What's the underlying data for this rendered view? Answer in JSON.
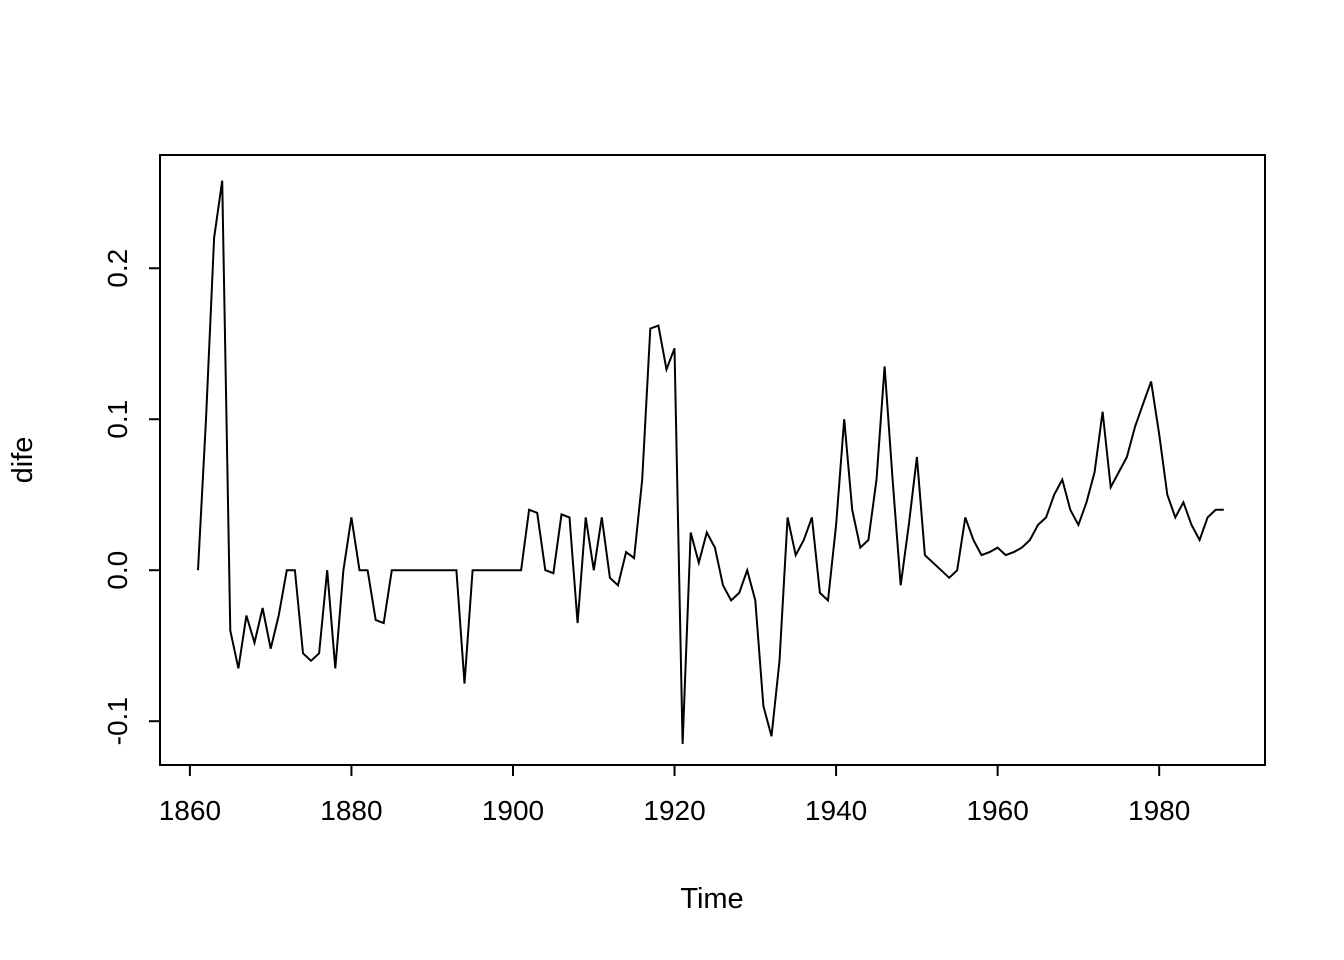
{
  "chart_data": {
    "type": "line",
    "title": "",
    "xlabel": "Time",
    "ylabel": "dife",
    "legend": "none",
    "grid": false,
    "background_color": "#ffffff",
    "line_color": "#000000",
    "xlim": [
      1856.3,
      1993.1
    ],
    "ylim": [
      -0.129,
      0.275
    ],
    "x_ticks": [
      1860,
      1880,
      1900,
      1920,
      1940,
      1960,
      1980
    ],
    "x_tick_labels": [
      "1860",
      "1880",
      "1900",
      "1920",
      "1940",
      "1960",
      "1980"
    ],
    "y_ticks": [
      -0.1,
      0.0,
      0.1,
      0.2
    ],
    "y_tick_labels": [
      "-0.1",
      "0.0",
      "0.1",
      "0.2"
    ],
    "x_start": 1861,
    "x_end": 1988,
    "x_step": 1,
    "series": [
      {
        "name": "dife",
        "values": [
          0.0,
          0.1,
          0.22,
          0.258,
          -0.04,
          -0.065,
          -0.03,
          -0.048,
          -0.025,
          -0.052,
          -0.03,
          0.0,
          0.0,
          -0.055,
          -0.06,
          -0.055,
          0.0,
          -0.065,
          0.0,
          0.035,
          0.0,
          0.0,
          -0.033,
          -0.035,
          0.0,
          0.0,
          0.0,
          0.0,
          0.0,
          0.0,
          0.0,
          0.0,
          0.0,
          -0.075,
          0.0,
          0.0,
          0.0,
          0.0,
          0.0,
          0.0,
          0.0,
          0.04,
          0.038,
          0.0,
          -0.002,
          0.037,
          0.035,
          -0.035,
          0.035,
          0.0,
          0.035,
          -0.005,
          -0.01,
          0.012,
          0.008,
          0.06,
          0.16,
          0.162,
          0.133,
          0.147,
          -0.115,
          0.025,
          0.005,
          0.025,
          0.015,
          -0.01,
          -0.02,
          -0.015,
          0.0,
          -0.02,
          -0.09,
          -0.11,
          -0.06,
          0.035,
          0.01,
          0.02,
          0.035,
          -0.015,
          -0.02,
          0.03,
          0.1,
          0.04,
          0.015,
          0.02,
          0.06,
          0.135,
          0.06,
          -0.01,
          0.03,
          0.075,
          0.01,
          0.005,
          0.0,
          -0.005,
          0.0,
          0.035,
          0.02,
          0.01,
          0.012,
          0.015,
          0.01,
          0.012,
          0.015,
          0.02,
          0.03,
          0.035,
          0.05,
          0.06,
          0.04,
          0.03,
          0.045,
          0.065,
          0.105,
          0.055,
          0.065,
          0.075,
          0.095,
          0.11,
          0.125,
          0.09,
          0.05,
          0.035,
          0.045,
          0.03,
          0.02,
          0.035,
          0.04,
          0.04
        ]
      }
    ]
  }
}
